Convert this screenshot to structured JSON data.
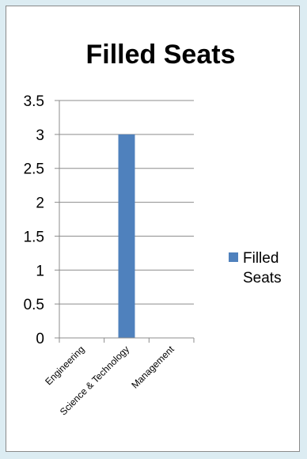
{
  "chart_data": {
    "type": "bar",
    "title": "Filled Seats",
    "categories": [
      "Engineering",
      "Science & Technology",
      "Management"
    ],
    "series": [
      {
        "name": "Filled Seats",
        "values": [
          0,
          3,
          0
        ],
        "color": "#4f81bd"
      }
    ],
    "ylim": [
      0,
      3.5
    ],
    "yticks": [
      "0",
      "0.5",
      "1",
      "1.5",
      "2",
      "2.5",
      "3",
      "3.5"
    ],
    "grid": true,
    "legend_position": "right",
    "legend_lines": [
      "Filled",
      "Seats"
    ]
  }
}
